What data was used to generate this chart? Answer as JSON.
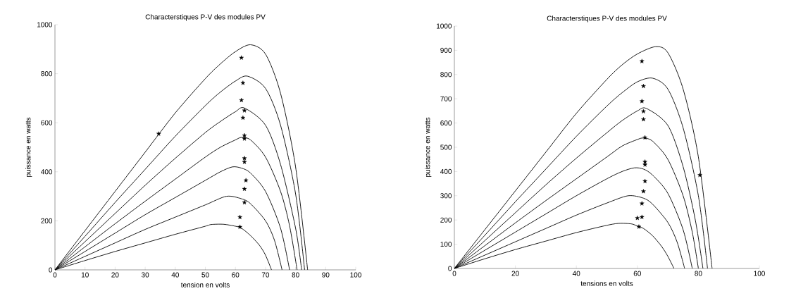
{
  "chart_data": [
    {
      "type": "line",
      "title": "Characterstiques P-V des modules PV",
      "xlabel": "tension en volts",
      "ylabel": "puissance en watts",
      "xlim": [
        0,
        100
      ],
      "ylim": [
        0,
        1000
      ],
      "xticks": [
        0,
        10,
        20,
        30,
        40,
        50,
        60,
        70,
        80,
        90,
        100
      ],
      "yticks": [
        0,
        200,
        400,
        600,
        800,
        1000
      ],
      "grid": false,
      "series": [
        {
          "color": "#000000",
          "x": [
            0,
            10,
            20,
            30,
            40,
            50,
            52,
            56,
            60,
            62,
            65,
            68,
            70,
            72
          ],
          "values": [
            0,
            38,
            75,
            110,
            145,
            178,
            185,
            186,
            178,
            170,
            140,
            100,
            60,
            0
          ]
        },
        {
          "color": "#000000",
          "x": [
            0,
            10,
            20,
            30,
            40,
            50,
            57,
            62,
            65,
            70,
            73,
            75.5
          ],
          "values": [
            0,
            55,
            110,
            165,
            215,
            265,
            300,
            290,
            270,
            200,
            120,
            0
          ]
        },
        {
          "color": "#000000",
          "x": [
            0,
            10,
            20,
            30,
            40,
            50,
            55,
            59,
            62,
            65,
            70,
            75,
            78
          ],
          "values": [
            0,
            75,
            150,
            225,
            295,
            365,
            400,
            420,
            415,
            395,
            320,
            170,
            0
          ]
        },
        {
          "color": "#000000",
          "x": [
            0,
            10,
            20,
            30,
            40,
            50,
            55,
            60,
            62,
            65,
            70,
            75,
            78,
            80.5
          ],
          "values": [
            0,
            94,
            188,
            280,
            370,
            460,
            500,
            530,
            540,
            530,
            460,
            320,
            180,
            0
          ]
        },
        {
          "color": "#000000",
          "x": [
            0,
            10,
            20,
            30,
            40,
            50,
            55,
            60,
            63,
            70,
            75,
            80,
            82
          ],
          "values": [
            0,
            115,
            230,
            345,
            455,
            560,
            605,
            645,
            660,
            590,
            430,
            170,
            0
          ]
        },
        {
          "color": "#000000",
          "x": [
            0,
            10,
            20,
            30,
            40,
            50,
            55,
            60,
            64,
            70,
            75,
            80,
            83
          ],
          "values": [
            0,
            137,
            275,
            410,
            545,
            670,
            725,
            770,
            790,
            740,
            590,
            310,
            0
          ]
        },
        {
          "color": "#000000",
          "x": [
            0,
            10,
            20,
            30,
            40,
            50,
            55,
            60,
            65,
            70,
            75,
            80,
            84
          ],
          "values": [
            0,
            160,
            320,
            480,
            640,
            780,
            840,
            890,
            918,
            880,
            720,
            420,
            0
          ]
        },
        {
          "type": "scatter",
          "marker": "star",
          "color": "#000000",
          "x": [
            62,
            62.5,
            62,
            63,
            62.5,
            63,
            63,
            63,
            63,
            63.5,
            63,
            63,
            61.5,
            61.5,
            34.5
          ],
          "values": [
            865,
            762,
            692,
            650,
            620,
            548,
            535,
            455,
            440,
            365,
            330,
            275,
            215,
            175,
            555
          ]
        }
      ]
    },
    {
      "type": "line",
      "title": "Characterstiques P-V des modules PV",
      "xlabel": "tensions en volts",
      "ylabel": "puissance en watts",
      "xlim": [
        0,
        100
      ],
      "ylim": [
        0,
        1000
      ],
      "xticks": [
        0,
        20,
        40,
        60,
        80,
        100
      ],
      "yticks": [
        0,
        100,
        200,
        300,
        400,
        500,
        600,
        700,
        800,
        900,
        1000
      ],
      "grid": false,
      "series": [
        {
          "color": "#000000",
          "x": [
            0,
            10,
            20,
            30,
            40,
            50,
            54,
            58,
            60,
            62,
            65,
            68,
            70,
            72
          ],
          "values": [
            0,
            40,
            78,
            113,
            148,
            178,
            186,
            184,
            175,
            165,
            135,
            90,
            50,
            0
          ]
        },
        {
          "color": "#000000",
          "x": [
            0,
            10,
            20,
            30,
            40,
            50,
            57,
            62,
            65,
            70,
            73,
            75.5
          ],
          "values": [
            0,
            55,
            110,
            165,
            220,
            270,
            300,
            290,
            265,
            190,
            110,
            0
          ]
        },
        {
          "color": "#000000",
          "x": [
            0,
            10,
            20,
            30,
            40,
            50,
            55,
            59,
            62,
            65,
            70,
            75,
            78
          ],
          "values": [
            0,
            75,
            150,
            225,
            300,
            370,
            400,
            415,
            410,
            385,
            310,
            160,
            0
          ]
        },
        {
          "color": "#000000",
          "x": [
            0,
            10,
            20,
            30,
            40,
            50,
            55,
            60,
            62,
            65,
            70,
            75,
            78,
            80
          ],
          "values": [
            0,
            94,
            188,
            280,
            370,
            460,
            505,
            532,
            538,
            525,
            450,
            300,
            150,
            0
          ]
        },
        {
          "color": "#000000",
          "x": [
            0,
            10,
            20,
            30,
            40,
            50,
            55,
            60,
            63,
            70,
            75,
            79,
            81.5
          ],
          "values": [
            0,
            115,
            230,
            345,
            455,
            560,
            610,
            650,
            660,
            590,
            420,
            200,
            0
          ]
        },
        {
          "color": "#000000",
          "x": [
            0,
            10,
            20,
            30,
            40,
            50,
            55,
            60,
            65,
            70,
            75,
            80,
            83
          ],
          "values": [
            0,
            137,
            275,
            410,
            545,
            670,
            725,
            770,
            785,
            740,
            580,
            300,
            0
          ]
        },
        {
          "color": "#000000",
          "x": [
            0,
            10,
            20,
            30,
            40,
            50,
            55,
            60,
            66,
            70,
            75,
            80,
            84.5
          ],
          "values": [
            0,
            160,
            320,
            480,
            640,
            780,
            840,
            885,
            915,
            890,
            740,
            460,
            0
          ]
        },
        {
          "type": "scatter",
          "marker": "star",
          "color": "#000000",
          "x": [
            61.5,
            62,
            61.5,
            62,
            62,
            62.5,
            62.5,
            62.5,
            62.5,
            62,
            61.5,
            60,
            61.5,
            60.5,
            80.5
          ],
          "values": [
            855,
            752,
            690,
            648,
            615,
            540,
            440,
            428,
            360,
            318,
            268,
            208,
            212,
            172,
            385
          ]
        }
      ]
    }
  ]
}
